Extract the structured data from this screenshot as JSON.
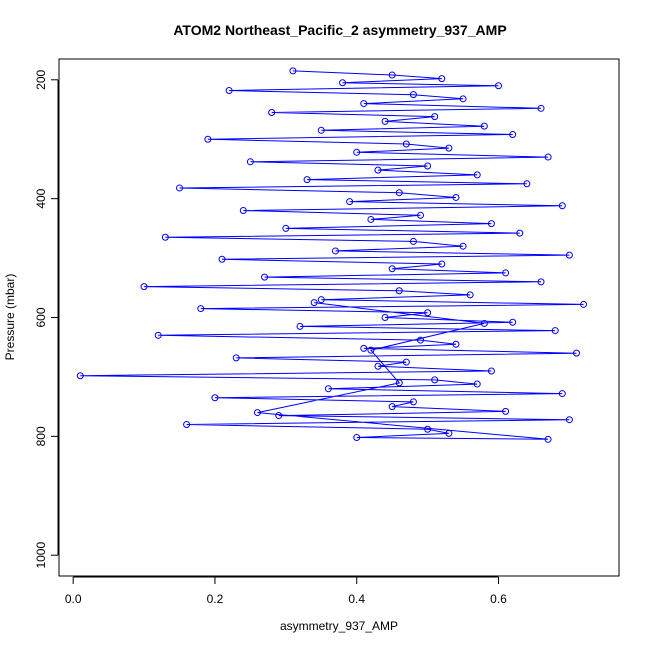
{
  "chart_data": {
    "type": "scatter",
    "title": "ATOM2 Northeast_Pacific_2 asymmetry_937_AMP",
    "xlabel": "asymmetry_937_AMP",
    "ylabel": "Pressure (mbar)",
    "xlim": [
      -0.02,
      0.77
    ],
    "ylim": [
      1035,
      165
    ],
    "y_inverted": true,
    "xticks": [
      "0.0",
      "0.2",
      "0.4",
      "0.6"
    ],
    "yticks": [
      "200",
      "400",
      "600",
      "800",
      "1000"
    ],
    "grid": false,
    "legend": "none",
    "series_color": "#0000ff",
    "marker": "open-circle",
    "connected": true,
    "series": [
      {
        "x": [
          0.31,
          0.45,
          0.52,
          0.38,
          0.6,
          0.22,
          0.48,
          0.55,
          0.41,
          0.66,
          0.28,
          0.51,
          0.44,
          0.58,
          0.35,
          0.62,
          0.19,
          0.47,
          0.53,
          0.4,
          0.67,
          0.25,
          0.5,
          0.43,
          0.57,
          0.33,
          0.64,
          0.15,
          0.46,
          0.54,
          0.39,
          0.69,
          0.24,
          0.49,
          0.42,
          0.59,
          0.3,
          0.63,
          0.13,
          0.48,
          0.55,
          0.37,
          0.7,
          0.21,
          0.52,
          0.45,
          0.61,
          0.27,
          0.66,
          0.1,
          0.46,
          0.56,
          0.35,
          0.72,
          0.18,
          0.5,
          0.44,
          0.62,
          0.32,
          0.68,
          0.12,
          0.49,
          0.54,
          0.41,
          0.71,
          0.23,
          0.47,
          0.43,
          0.59,
          0.01,
          0.51,
          0.57,
          0.36,
          0.69,
          0.2,
          0.48,
          0.45,
          0.61,
          0.29,
          0.7,
          0.16,
          0.5,
          0.53,
          0.4,
          0.67,
          0.26,
          0.46,
          0.42,
          0.58,
          0.34
        ],
        "y": [
          185,
          192,
          198,
          205,
          210,
          218,
          225,
          232,
          240,
          248,
          255,
          262,
          270,
          278,
          285,
          292,
          300,
          308,
          315,
          322,
          330,
          338,
          345,
          352,
          360,
          368,
          375,
          382,
          390,
          398,
          405,
          412,
          420,
          428,
          435,
          442,
          450,
          458,
          465,
          472,
          480,
          488,
          495,
          502,
          510,
          518,
          525,
          532,
          540,
          548,
          555,
          562,
          570,
          578,
          585,
          592,
          600,
          608,
          615,
          622,
          630,
          638,
          645,
          652,
          660,
          668,
          675,
          682,
          690,
          698,
          705,
          712,
          720,
          728,
          735,
          742,
          750,
          758,
          765,
          772,
          780,
          788,
          795,
          802,
          805,
          760,
          710,
          655,
          610,
          575
        ]
      }
    ]
  }
}
